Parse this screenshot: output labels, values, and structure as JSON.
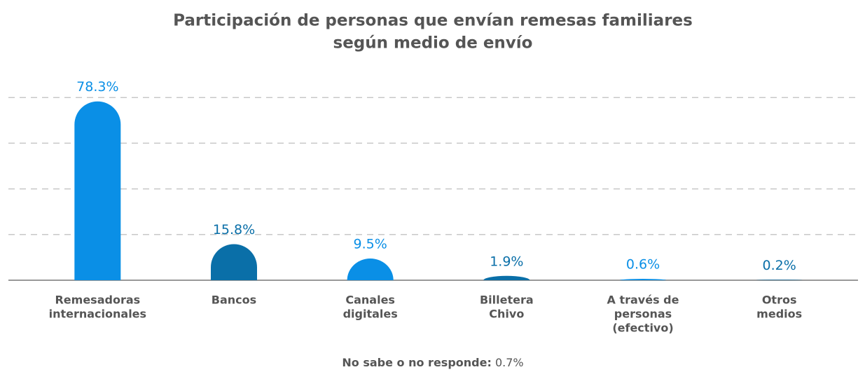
{
  "chart_data": {
    "type": "bar",
    "title": [
      "Participación de personas que envían remesas familiares",
      "según medio de envío"
    ],
    "categories": [
      [
        "Remesadoras",
        "internacionales"
      ],
      [
        "Bancos"
      ],
      [
        "Canales",
        "digitales"
      ],
      [
        "Billetera",
        "Chivo"
      ],
      [
        "A través de",
        "personas",
        "(efectivo)"
      ],
      [
        "Otros",
        "medios"
      ]
    ],
    "values": [
      78.3,
      15.8,
      9.5,
      1.9,
      0.6,
      0.2
    ],
    "value_labels": [
      "78.3%",
      "15.8%",
      "9.5%",
      "1.9%",
      "0.6%",
      "0.2%"
    ],
    "colors": [
      "#0a8fe6",
      "#0a6fa8",
      "#0a8fe6",
      "#0a6fa8",
      "#0a8fe6",
      "#0a6fa8"
    ],
    "ylim": [
      0,
      90
    ],
    "yticks": [
      20,
      40,
      60,
      80
    ],
    "grid": true,
    "footnote": {
      "label": "No sabe o no responde:",
      "value": "0.7%"
    }
  }
}
